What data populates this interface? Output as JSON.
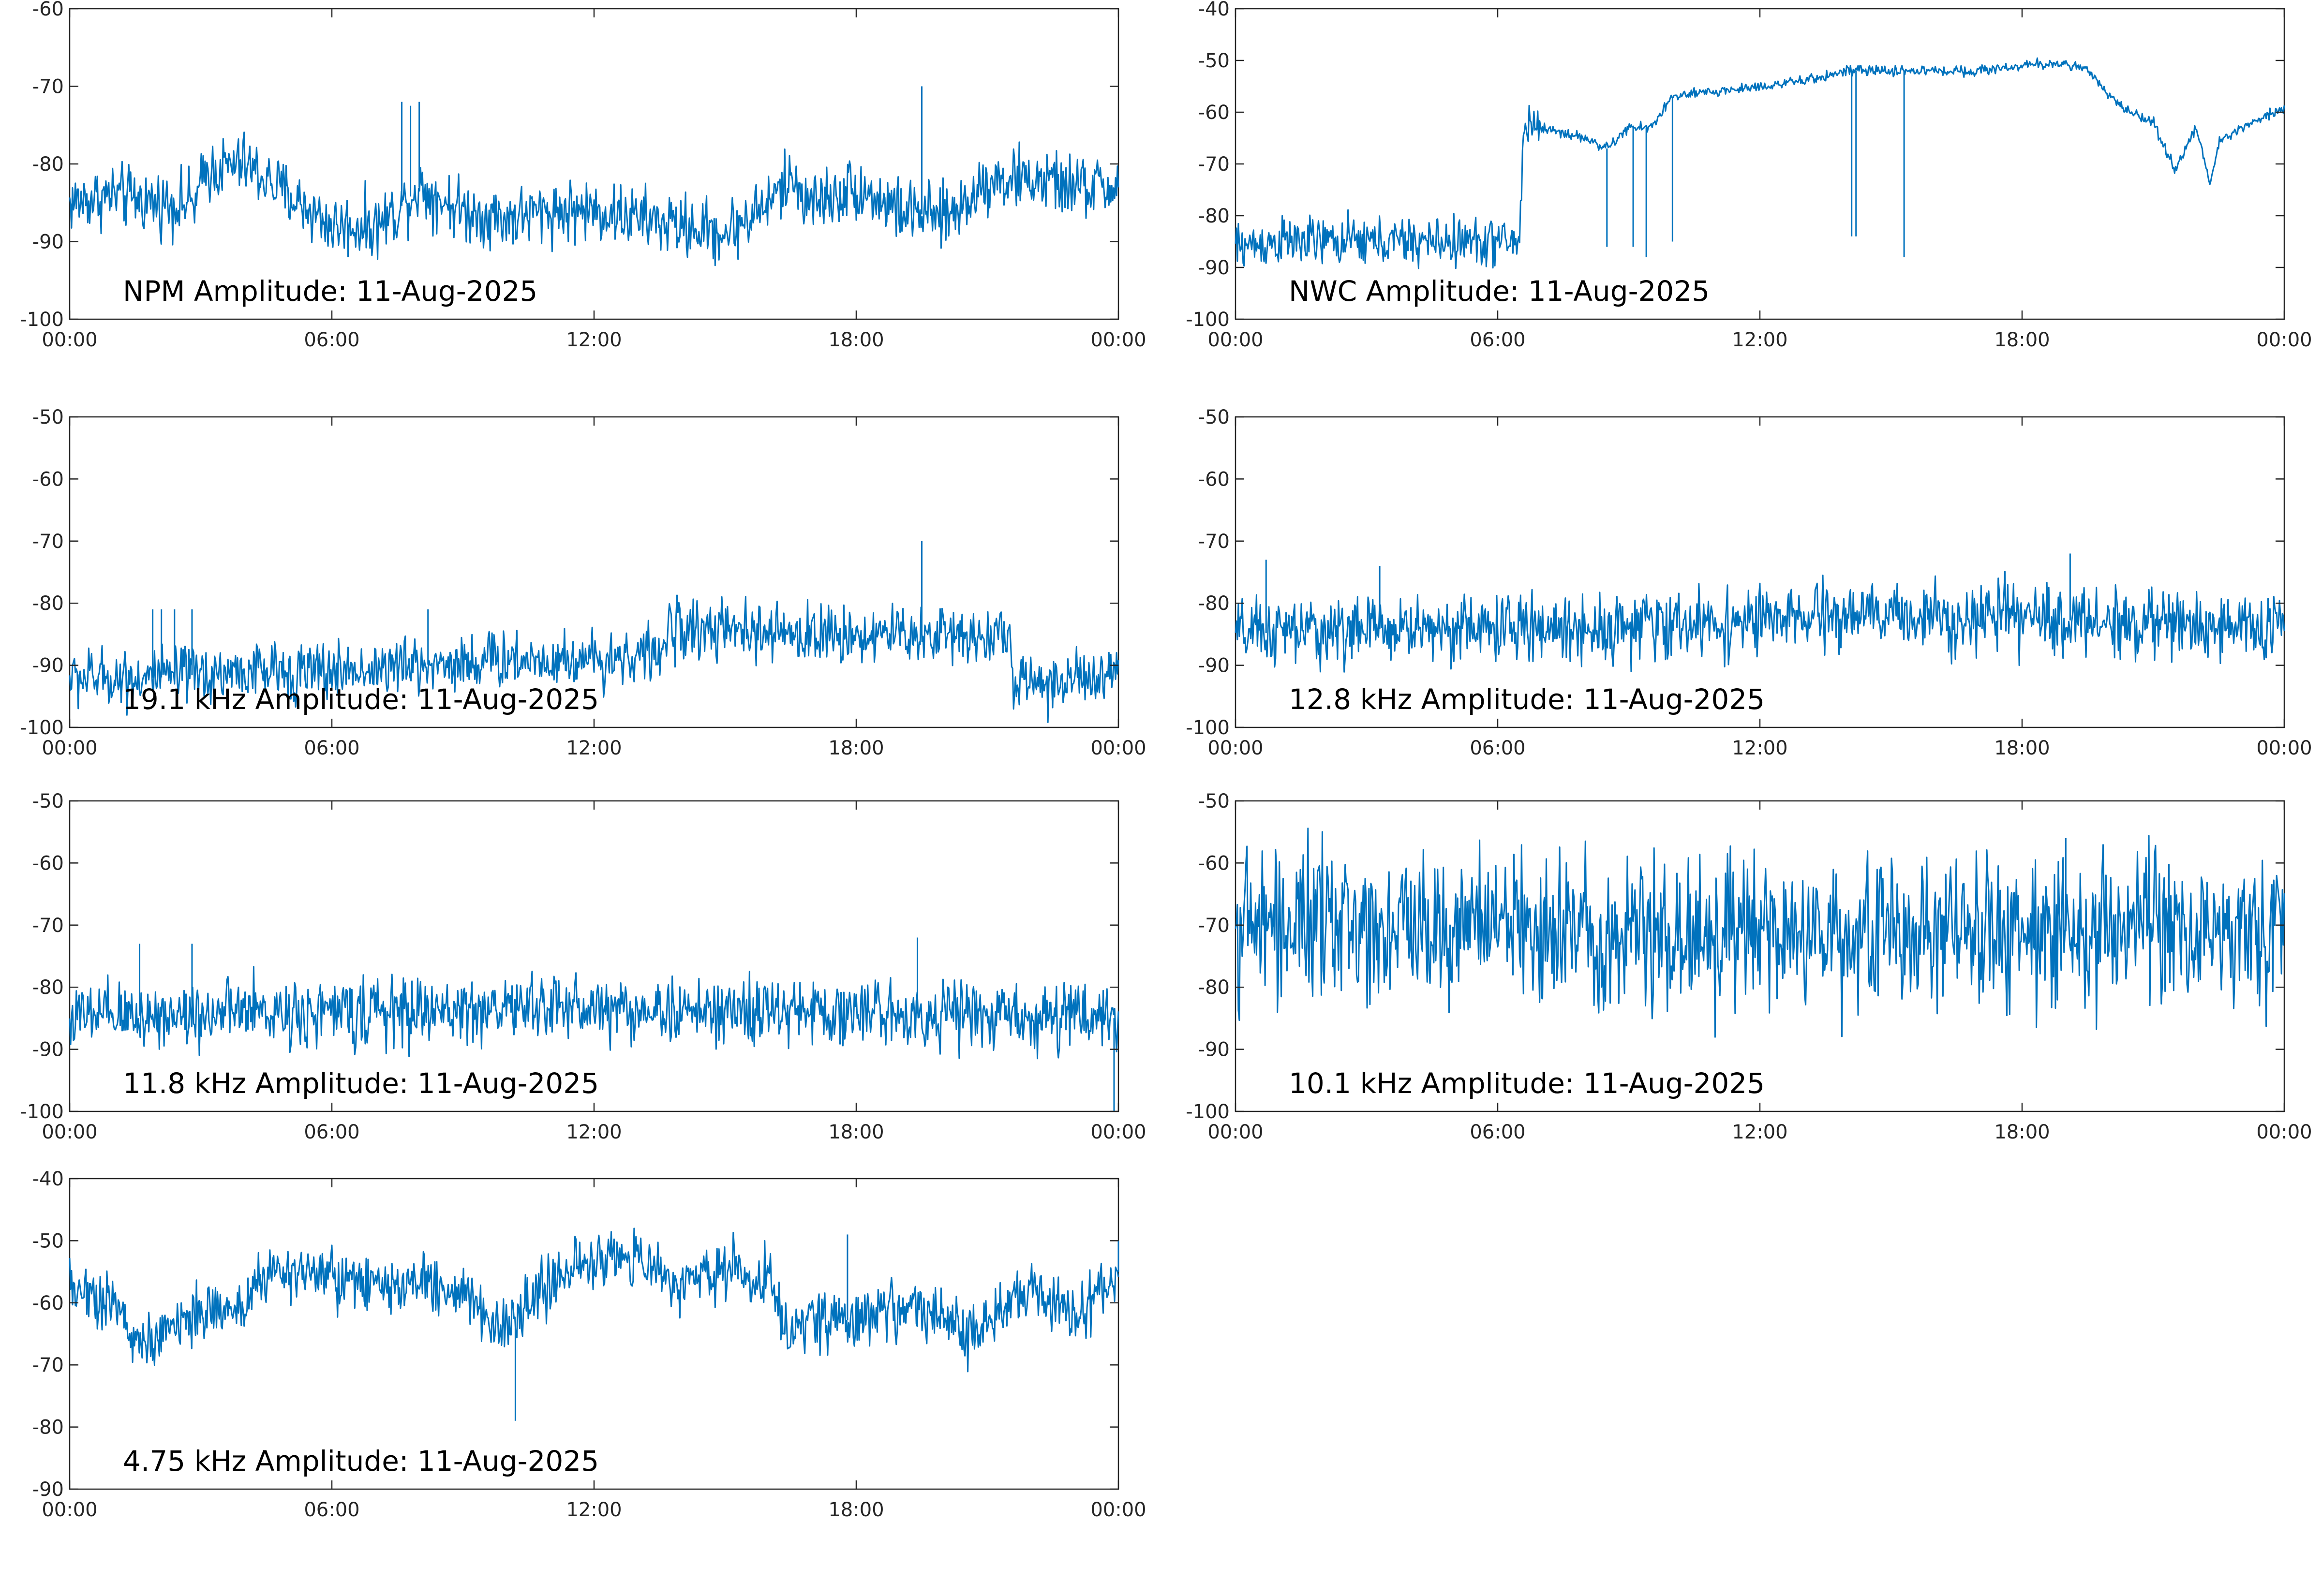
{
  "figure": {
    "line_color": "#0072BD",
    "panels_note_color": "#000000"
  },
  "chart_data": [
    {
      "type": "line",
      "title": "NPM Amplitude: 11-Aug-2025",
      "x_ticks": [
        "00:00",
        "06:00",
        "12:00",
        "18:00",
        "00:00"
      ],
      "x_range_hours": [
        0,
        24
      ],
      "ylim": [
        -100,
        -60
      ],
      "y_ticks": [
        -60,
        -70,
        -80,
        -90,
        -100
      ],
      "grid": false,
      "series": [
        {
          "sample_hours": [
            0,
            1,
            2,
            2.9,
            3.1,
            4,
            5,
            6,
            7,
            7.5,
            8,
            9,
            10,
            11,
            12,
            13,
            14,
            15,
            16,
            16.5,
            17,
            18,
            19,
            20,
            20.5,
            21,
            22,
            23,
            24
          ],
          "level": [
            -85,
            -84,
            -85,
            -85,
            -81,
            -80,
            -84,
            -88,
            -88,
            -86,
            -83,
            -86,
            -87,
            -86,
            -86,
            -87,
            -88,
            -89,
            -85,
            -82,
            -85,
            -83,
            -86,
            -87,
            -85,
            -82,
            -82,
            -83,
            -83
          ],
          "noise": 6,
          "spikes": [
            {
              "x": 7.6,
              "y": -72
            },
            {
              "x": 7.8,
              "y": -72.5
            },
            {
              "x": 8.0,
              "y": -72
            },
            {
              "x": 19.5,
              "y": -70
            }
          ]
        }
      ]
    },
    {
      "type": "line",
      "title": "NWC Amplitude: 11-Aug-2025",
      "x_ticks": [
        "00:00",
        "06:00",
        "12:00",
        "18:00",
        "00:00"
      ],
      "x_range_hours": [
        0,
        24
      ],
      "ylim": [
        -100,
        -40
      ],
      "y_ticks": [
        -40,
        -50,
        -60,
        -70,
        -80,
        -90,
        -100
      ],
      "grid": false,
      "series": [
        {
          "sample_hours": [
            0,
            1,
            2,
            3,
            4,
            5,
            6,
            6.5,
            6.6,
            7,
            8,
            8.5,
            9,
            9.5,
            10,
            11,
            12,
            13,
            14,
            15,
            16,
            17,
            18,
            19,
            19.5,
            20,
            20.5,
            21,
            21.5,
            22,
            22.3,
            22.5,
            23,
            24
          ],
          "level": [
            -86,
            -85,
            -85,
            -85,
            -85,
            -85,
            -85,
            -85,
            -62,
            -63,
            -65,
            -67,
            -63,
            -63,
            -57,
            -56,
            -55,
            -54,
            -52,
            -52,
            -52,
            -52,
            -51,
            -50.5,
            -52,
            -57,
            -60,
            -62,
            -71,
            -63,
            -74,
            -66,
            -63,
            -59
          ],
          "noise": 1.5,
          "noise_before_hour": [
            6.5,
            7
          ],
          "spikes": [
            {
              "x": 8.5,
              "y": -86
            },
            {
              "x": 9.1,
              "y": -86
            },
            {
              "x": 9.4,
              "y": -88
            },
            {
              "x": 10.0,
              "y": -85
            },
            {
              "x": 14.1,
              "y": -84
            },
            {
              "x": 14.2,
              "y": -84
            },
            {
              "x": 15.3,
              "y": -88
            }
          ]
        }
      ]
    },
    {
      "type": "line",
      "title": "19.1 kHz Amplitude: 11-Aug-2025",
      "x_ticks": [
        "00:00",
        "06:00",
        "12:00",
        "18:00",
        "00:00"
      ],
      "x_range_hours": [
        0,
        24
      ],
      "ylim": [
        -100,
        -50
      ],
      "y_ticks": [
        -50,
        -60,
        -70,
        -80,
        -90,
        -100
      ],
      "grid": false,
      "series": [
        {
          "sample_hours": [
            0,
            2,
            4,
            6,
            8,
            10,
            12,
            13.6,
            13.7,
            16,
            18,
            20,
            21.5,
            21.6,
            24
          ],
          "level": [
            -92,
            -92,
            -91,
            -91,
            -90,
            -89,
            -89,
            -88,
            -84,
            -85,
            -85,
            -85,
            -85,
            -93,
            -92
          ],
          "noise": 7,
          "spikes": [
            {
              "x": 1.9,
              "y": -81
            },
            {
              "x": 2.1,
              "y": -81
            },
            {
              "x": 2.4,
              "y": -81
            },
            {
              "x": 2.8,
              "y": -81
            },
            {
              "x": 8.2,
              "y": -81
            },
            {
              "x": 19.5,
              "y": -70
            }
          ]
        }
      ]
    },
    {
      "type": "line",
      "title": "12.8 kHz Amplitude: 11-Aug-2025",
      "x_ticks": [
        "00:00",
        "06:00",
        "12:00",
        "18:00",
        "00:00"
      ],
      "x_range_hours": [
        0,
        24
      ],
      "ylim": [
        -100,
        -50
      ],
      "y_ticks": [
        -50,
        -60,
        -70,
        -80,
        -90,
        -100
      ],
      "grid": false,
      "series": [
        {
          "sample_hours": [
            0,
            4,
            8,
            12,
            14,
            16,
            20,
            24
          ],
          "level": [
            -85,
            -84,
            -84,
            -83,
            -82,
            -82,
            -83,
            -84
          ],
          "noise": 8,
          "spikes": [
            {
              "x": 0.7,
              "y": -73
            },
            {
              "x": 3.3,
              "y": -74
            },
            {
              "x": 19.1,
              "y": -72
            }
          ]
        }
      ]
    },
    {
      "type": "line",
      "title": "11.8 kHz Amplitude: 11-Aug-2025",
      "x_ticks": [
        "00:00",
        "06:00",
        "12:00",
        "18:00",
        "00:00"
      ],
      "x_range_hours": [
        0,
        24
      ],
      "ylim": [
        -100,
        -50
      ],
      "y_ticks": [
        -50,
        -60,
        -70,
        -80,
        -90,
        -100
      ],
      "grid": false,
      "series": [
        {
          "sample_hours": [
            0,
            4,
            8,
            11,
            14,
            18,
            24
          ],
          "level": [
            -85,
            -84,
            -84,
            -83,
            -84,
            -84,
            -85
          ],
          "noise": 8,
          "spikes": [
            {
              "x": 1.6,
              "y": -73
            },
            {
              "x": 2.8,
              "y": -73
            },
            {
              "x": 19.4,
              "y": -72
            },
            {
              "x": 23.9,
              "y": -100
            }
          ]
        }
      ]
    },
    {
      "type": "line",
      "title": "10.1 kHz Amplitude: 11-Aug-2025",
      "x_ticks": [
        "00:00",
        "06:00",
        "12:00",
        "18:00",
        "00:00"
      ],
      "x_range_hours": [
        0,
        24
      ],
      "ylim": [
        -100,
        -50
      ],
      "y_ticks": [
        -50,
        -60,
        -70,
        -80,
        -90,
        -100
      ],
      "grid": false,
      "series": [
        {
          "sample_hours": [
            0,
            6,
            12,
            18,
            24
          ],
          "level": [
            -70,
            -70,
            -72,
            -71,
            -71
          ],
          "noise": 18,
          "spikes": [
            {
              "x": 19.0,
              "y": -56
            }
          ]
        }
      ]
    },
    {
      "type": "line",
      "title": "4.75 kHz Amplitude: 11-Aug-2025",
      "x_ticks": [
        "00:00",
        "06:00",
        "12:00",
        "18:00",
        "00:00"
      ],
      "x_range_hours": [
        0,
        24
      ],
      "ylim": [
        -90,
        -40
      ],
      "y_ticks": [
        -40,
        -50,
        -60,
        -70,
        -80,
        -90
      ],
      "grid": false,
      "series": [
        {
          "sample_hours": [
            0,
            1,
            1.5,
            2,
            2.5,
            3,
            4,
            4.5,
            6,
            7,
            8,
            9,
            10,
            10.5,
            11,
            12,
            13,
            14,
            15,
            16,
            16.5,
            17,
            18,
            19,
            20,
            20.5,
            21,
            22,
            23,
            24
          ],
          "level": [
            -57,
            -60,
            -66,
            -67,
            -62,
            -62,
            -60,
            -55,
            -56,
            -58,
            -57,
            -58,
            -65,
            -60,
            -57,
            -53,
            -53,
            -57,
            -54,
            -56,
            -66,
            -62,
            -63,
            -60,
            -63,
            -66,
            -63,
            -58,
            -62,
            -55
          ],
          "noise": 7,
          "spikes": [
            {
              "x": 10.2,
              "y": -79
            },
            {
              "x": 17.8,
              "y": -49
            },
            {
              "x": 24,
              "y": -50
            }
          ]
        }
      ]
    }
  ]
}
